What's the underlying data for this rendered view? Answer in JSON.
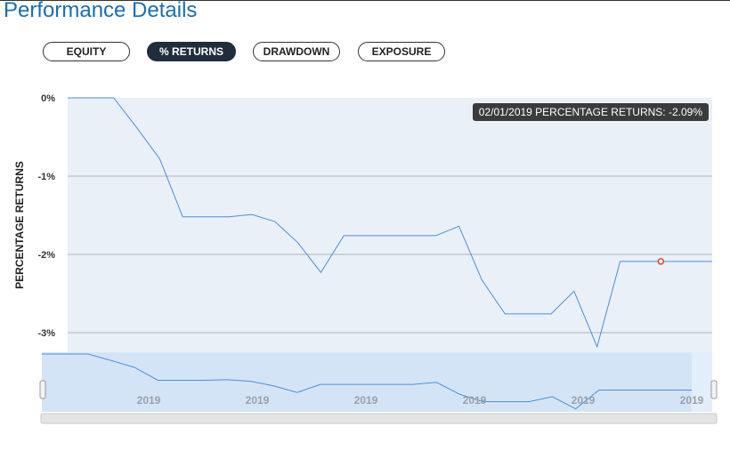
{
  "page": {
    "title": "Performance Details"
  },
  "tabs": [
    {
      "label": "EQUITY",
      "active": false
    },
    {
      "label": "% RETURNS",
      "active": true
    },
    {
      "label": "DRAWDOWN",
      "active": false
    },
    {
      "label": "EXPOSURE",
      "active": false
    }
  ],
  "tooltip": {
    "text": "02/01/2019 PERCENTAGE RETURNS: -2.09%"
  },
  "colors": {
    "title": "#1a6db3",
    "line": "#4a90d9",
    "fill": "#e9f0f8",
    "marker": "#e0442c",
    "active_tab": "#1f2d3d"
  },
  "chart_data": {
    "type": "area",
    "ylabel": "PERCENTAGE RETURNS",
    "ylim": [
      -3.25,
      0
    ],
    "yticks": [
      0,
      -1,
      -2,
      -3
    ],
    "ytick_labels": [
      "0%",
      "-1%",
      "-2%",
      "-3%"
    ],
    "grid": true,
    "series": [
      {
        "values": [
          0,
          0,
          0,
          -0.38,
          -0.78,
          -1.52,
          -1.52,
          -1.52,
          -1.49,
          -1.58,
          -1.85,
          -2.23,
          -1.76,
          -1.76,
          -1.76,
          -1.76,
          -1.76,
          -1.64,
          -2.33,
          -2.76,
          -2.76,
          -2.76,
          -2.47,
          -3.18,
          -2.09,
          -2.09,
          -2.09,
          -2.09,
          -2.09
        ]
      }
    ],
    "highlight": {
      "value": -2.09,
      "label": "02/01/2019 PERCENTAGE RETURNS: -2.09%"
    },
    "navigator": {
      "tick_labels": [
        "2019",
        "2019",
        "2019",
        "2019",
        "2019",
        "2019"
      ]
    }
  }
}
